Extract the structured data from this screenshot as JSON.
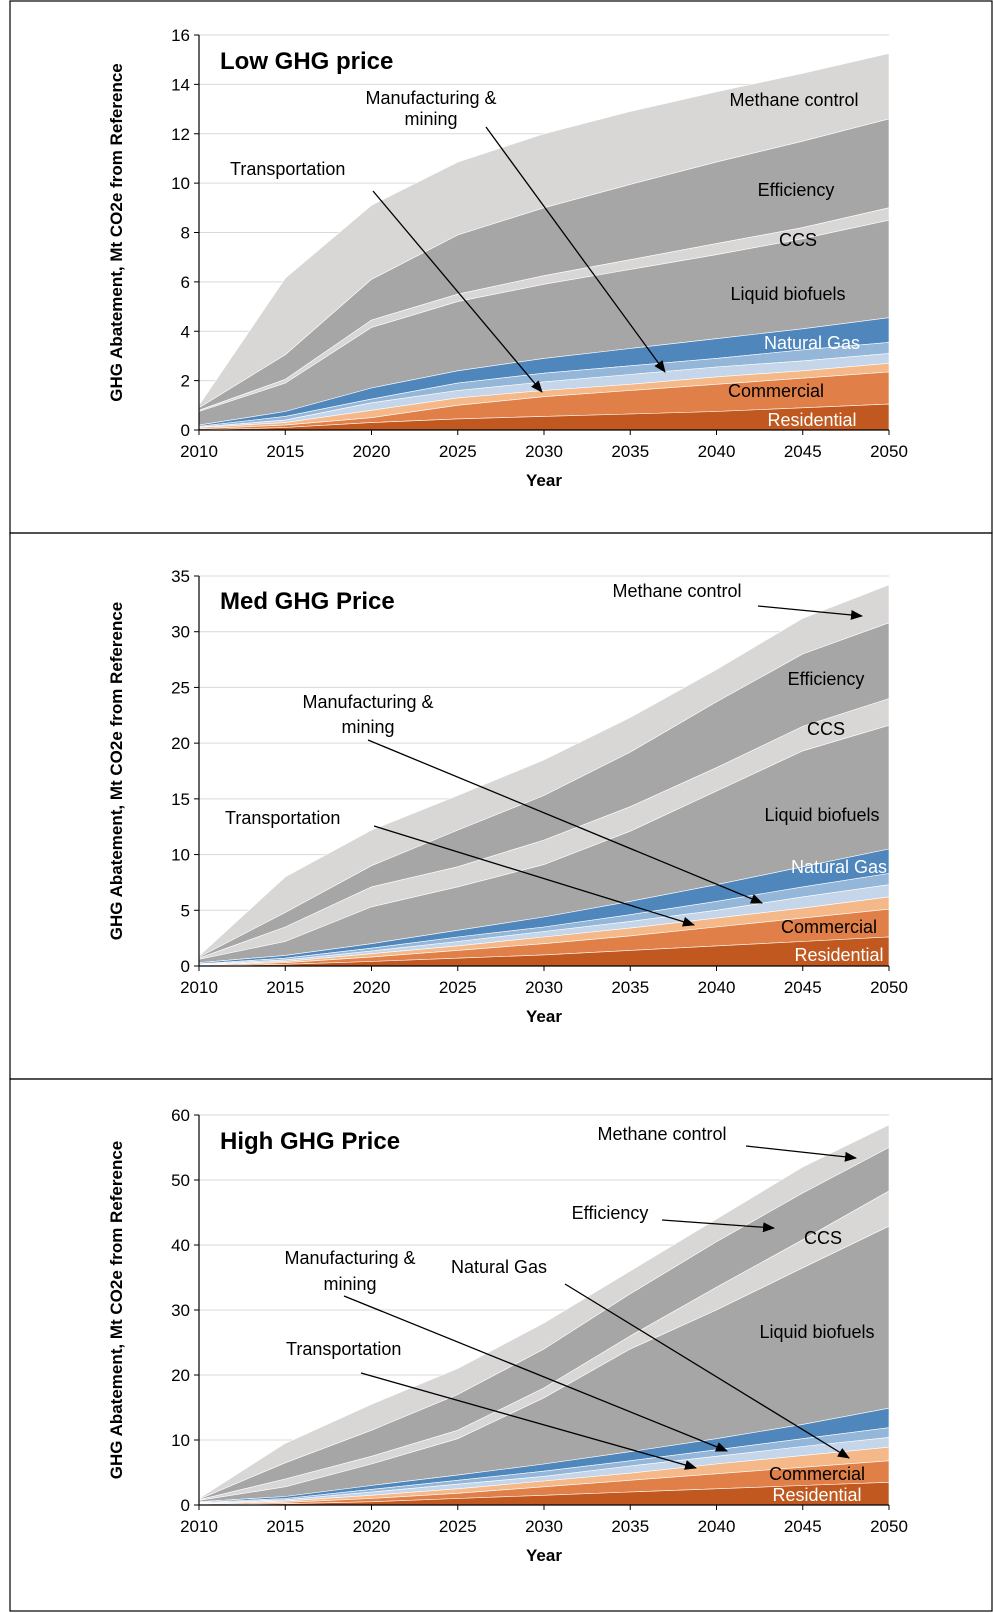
{
  "colors": {
    "residential": "#c0581f",
    "commercial": "#e07f47",
    "transportation": "#f4b889",
    "manufacturing": "#c5d6ea",
    "natural_gas_light": "#94b6d9",
    "natural_gas": "#4f87bd",
    "liquid_biofuels": "#a6a6a6",
    "ccs": "#d9d6d6",
    "efficiency": "#a6a6a6",
    "methane": "#d9d6d6",
    "grid": "#d9d9d9",
    "frame": "#000000"
  },
  "chart_data": [
    {
      "type": "area",
      "title": "Low GHG price",
      "xlabel": "Year",
      "ylabel": "GHG Abatement, Mt CO2e from Reference",
      "x": [
        2010,
        2015,
        2020,
        2025,
        2030,
        2035,
        2040,
        2045,
        2050
      ],
      "ylim": [
        0,
        16
      ],
      "yticks": [
        0,
        2,
        4,
        6,
        8,
        10,
        12,
        14,
        16
      ],
      "stack_order": [
        "residential",
        "commercial",
        "transportation",
        "manufacturing",
        "natural_gas_light",
        "natural_gas",
        "liquid_biofuels",
        "ccs",
        "efficiency",
        "methane"
      ],
      "cumulative": {
        "residential": [
          0.0,
          0.1,
          0.3,
          0.45,
          0.55,
          0.65,
          0.75,
          0.9,
          1.05
        ],
        "commercial": [
          0.05,
          0.2,
          0.5,
          1.0,
          1.35,
          1.6,
          1.85,
          2.1,
          2.35
        ],
        "transportation": [
          0.1,
          0.3,
          0.8,
          1.3,
          1.6,
          1.85,
          2.15,
          2.4,
          2.7
        ],
        "manufacturing": [
          0.12,
          0.4,
          1.1,
          1.6,
          1.95,
          2.25,
          2.55,
          2.8,
          3.1
        ],
        "natural_gas_light": [
          0.15,
          0.55,
          1.25,
          1.9,
          2.3,
          2.6,
          2.9,
          3.25,
          3.55
        ],
        "natural_gas": [
          0.2,
          0.75,
          1.7,
          2.4,
          2.9,
          3.3,
          3.7,
          4.1,
          4.55
        ],
        "liquid_biofuels": [
          0.75,
          1.9,
          4.15,
          5.2,
          5.9,
          6.5,
          7.1,
          7.75,
          8.5
        ],
        "ccs": [
          0.8,
          2.05,
          4.45,
          5.5,
          6.25,
          6.9,
          7.55,
          8.2,
          9.0
        ],
        "efficiency": [
          0.9,
          3.05,
          6.1,
          7.9,
          9.0,
          9.95,
          10.85,
          11.7,
          12.6
        ],
        "methane": [
          1.0,
          6.15,
          9.1,
          10.85,
          12.0,
          12.9,
          13.7,
          14.45,
          15.25
        ]
      },
      "labels": {
        "methane": "Methane control",
        "efficiency": "Efficiency",
        "ccs": "CCS",
        "liquid_biofuels": "Liquid biofuels",
        "natural_gas": "Natural Gas",
        "commercial": "Commercial",
        "residential": "Residential",
        "transportation": "Transportation",
        "manufacturing_line1": "Manufacturing &",
        "manufacturing_line2": "mining"
      }
    },
    {
      "type": "area",
      "title": "Med GHG Price",
      "xlabel": "Year",
      "ylabel": "GHG Abatement, Mt CO2e from Reference",
      "x": [
        2010,
        2015,
        2020,
        2025,
        2030,
        2035,
        2040,
        2045,
        2050
      ],
      "ylim": [
        0,
        35
      ],
      "yticks": [
        0,
        5,
        10,
        15,
        20,
        25,
        30,
        35
      ],
      "stack_order": [
        "residential",
        "commercial",
        "transportation",
        "manufacturing",
        "natural_gas_light",
        "natural_gas",
        "liquid_biofuels",
        "ccs",
        "efficiency",
        "methane"
      ],
      "cumulative": {
        "residential": [
          0.0,
          0.15,
          0.4,
          0.7,
          1.0,
          1.4,
          1.8,
          2.2,
          2.6
        ],
        "commercial": [
          0.05,
          0.3,
          0.8,
          1.4,
          2.0,
          2.7,
          3.5,
          4.3,
          5.1
        ],
        "transportation": [
          0.1,
          0.4,
          1.1,
          1.8,
          2.6,
          3.4,
          4.3,
          5.2,
          6.2
        ],
        "manufacturing": [
          0.15,
          0.55,
          1.35,
          2.2,
          3.1,
          4.0,
          5.0,
          6.2,
          7.3
        ],
        "natural_gas_light": [
          0.2,
          0.7,
          1.6,
          2.6,
          3.5,
          4.6,
          5.8,
          7.1,
          8.3
        ],
        "natural_gas": [
          0.3,
          0.95,
          2.0,
          3.2,
          4.4,
          5.8,
          7.3,
          8.9,
          10.5
        ],
        "liquid_biofuels": [
          0.6,
          2.2,
          5.3,
          7.1,
          9.1,
          12.1,
          15.7,
          19.3,
          21.6
        ],
        "ccs": [
          0.7,
          3.5,
          7.1,
          8.9,
          11.3,
          14.3,
          17.8,
          21.5,
          24.0
        ],
        "efficiency": [
          0.8,
          4.8,
          9.0,
          12.2,
          15.3,
          19.2,
          23.7,
          28.0,
          30.8
        ],
        "methane": [
          0.9,
          8.0,
          12.2,
          15.3,
          18.5,
          22.3,
          26.6,
          31.2,
          34.2
        ]
      },
      "labels": {
        "methane": "Methane control",
        "efficiency": "Efficiency",
        "ccs": "CCS",
        "liquid_biofuels": "Liquid biofuels",
        "natural_gas": "Natural Gas",
        "commercial": "Commercial",
        "residential": "Residential",
        "transportation": "Transportation",
        "manufacturing_line1": "Manufacturing &",
        "manufacturing_line2": "mining"
      }
    },
    {
      "type": "area",
      "title": "High GHG Price",
      "xlabel": "Year",
      "ylabel": "GHG Abatement, Mt CO2e from Reference",
      "x": [
        2010,
        2015,
        2020,
        2025,
        2030,
        2035,
        2040,
        2045,
        2050
      ],
      "ylim": [
        0,
        60
      ],
      "yticks": [
        0,
        10,
        20,
        30,
        40,
        50,
        60
      ],
      "stack_order": [
        "residential",
        "commercial",
        "transportation",
        "manufacturing",
        "natural_gas_light",
        "natural_gas",
        "liquid_biofuels",
        "ccs",
        "efficiency",
        "methane"
      ],
      "cumulative": {
        "residential": [
          0.0,
          0.2,
          0.5,
          1.0,
          1.5,
          2.0,
          2.5,
          3.0,
          3.5
        ],
        "commercial": [
          0.1,
          0.4,
          1.0,
          1.8,
          2.8,
          3.8,
          4.8,
          5.8,
          6.8
        ],
        "transportation": [
          0.2,
          0.6,
          1.5,
          2.5,
          3.7,
          4.9,
          6.3,
          7.6,
          8.9
        ],
        "manufacturing": [
          0.3,
          0.8,
          2.0,
          3.2,
          4.4,
          6.0,
          7.5,
          9.0,
          10.4
        ],
        "natural_gas_light": [
          0.4,
          1.0,
          2.4,
          3.8,
          5.2,
          6.8,
          8.5,
          10.2,
          11.9
        ],
        "natural_gas": [
          0.5,
          1.3,
          3.0,
          4.6,
          6.3,
          8.2,
          10.2,
          12.4,
          14.9
        ],
        "liquid_biofuels": [
          0.7,
          2.8,
          6.3,
          10.2,
          16.5,
          24.0,
          30.0,
          36.5,
          42.9
        ],
        "ccs": [
          0.8,
          4.0,
          7.5,
          11.5,
          18.0,
          26.0,
          33.5,
          40.8,
          48.3
        ],
        "efficiency": [
          0.9,
          6.5,
          11.5,
          17.0,
          24.0,
          32.5,
          40.5,
          48.0,
          55.0
        ],
        "methane": [
          1.0,
          9.5,
          15.5,
          21.0,
          28.0,
          36.0,
          44.0,
          52.0,
          58.5
        ]
      },
      "labels": {
        "methane": "Methane control",
        "efficiency": "Efficiency",
        "ccs": "CCS",
        "liquid_biofuels": "Liquid biofuels",
        "natural_gas": "Natural Gas",
        "commercial": "Commercial",
        "residential": "Residential",
        "transportation": "Transportation",
        "manufacturing_line1": "Manufacturing &",
        "manufacturing_line2": "mining"
      }
    }
  ]
}
